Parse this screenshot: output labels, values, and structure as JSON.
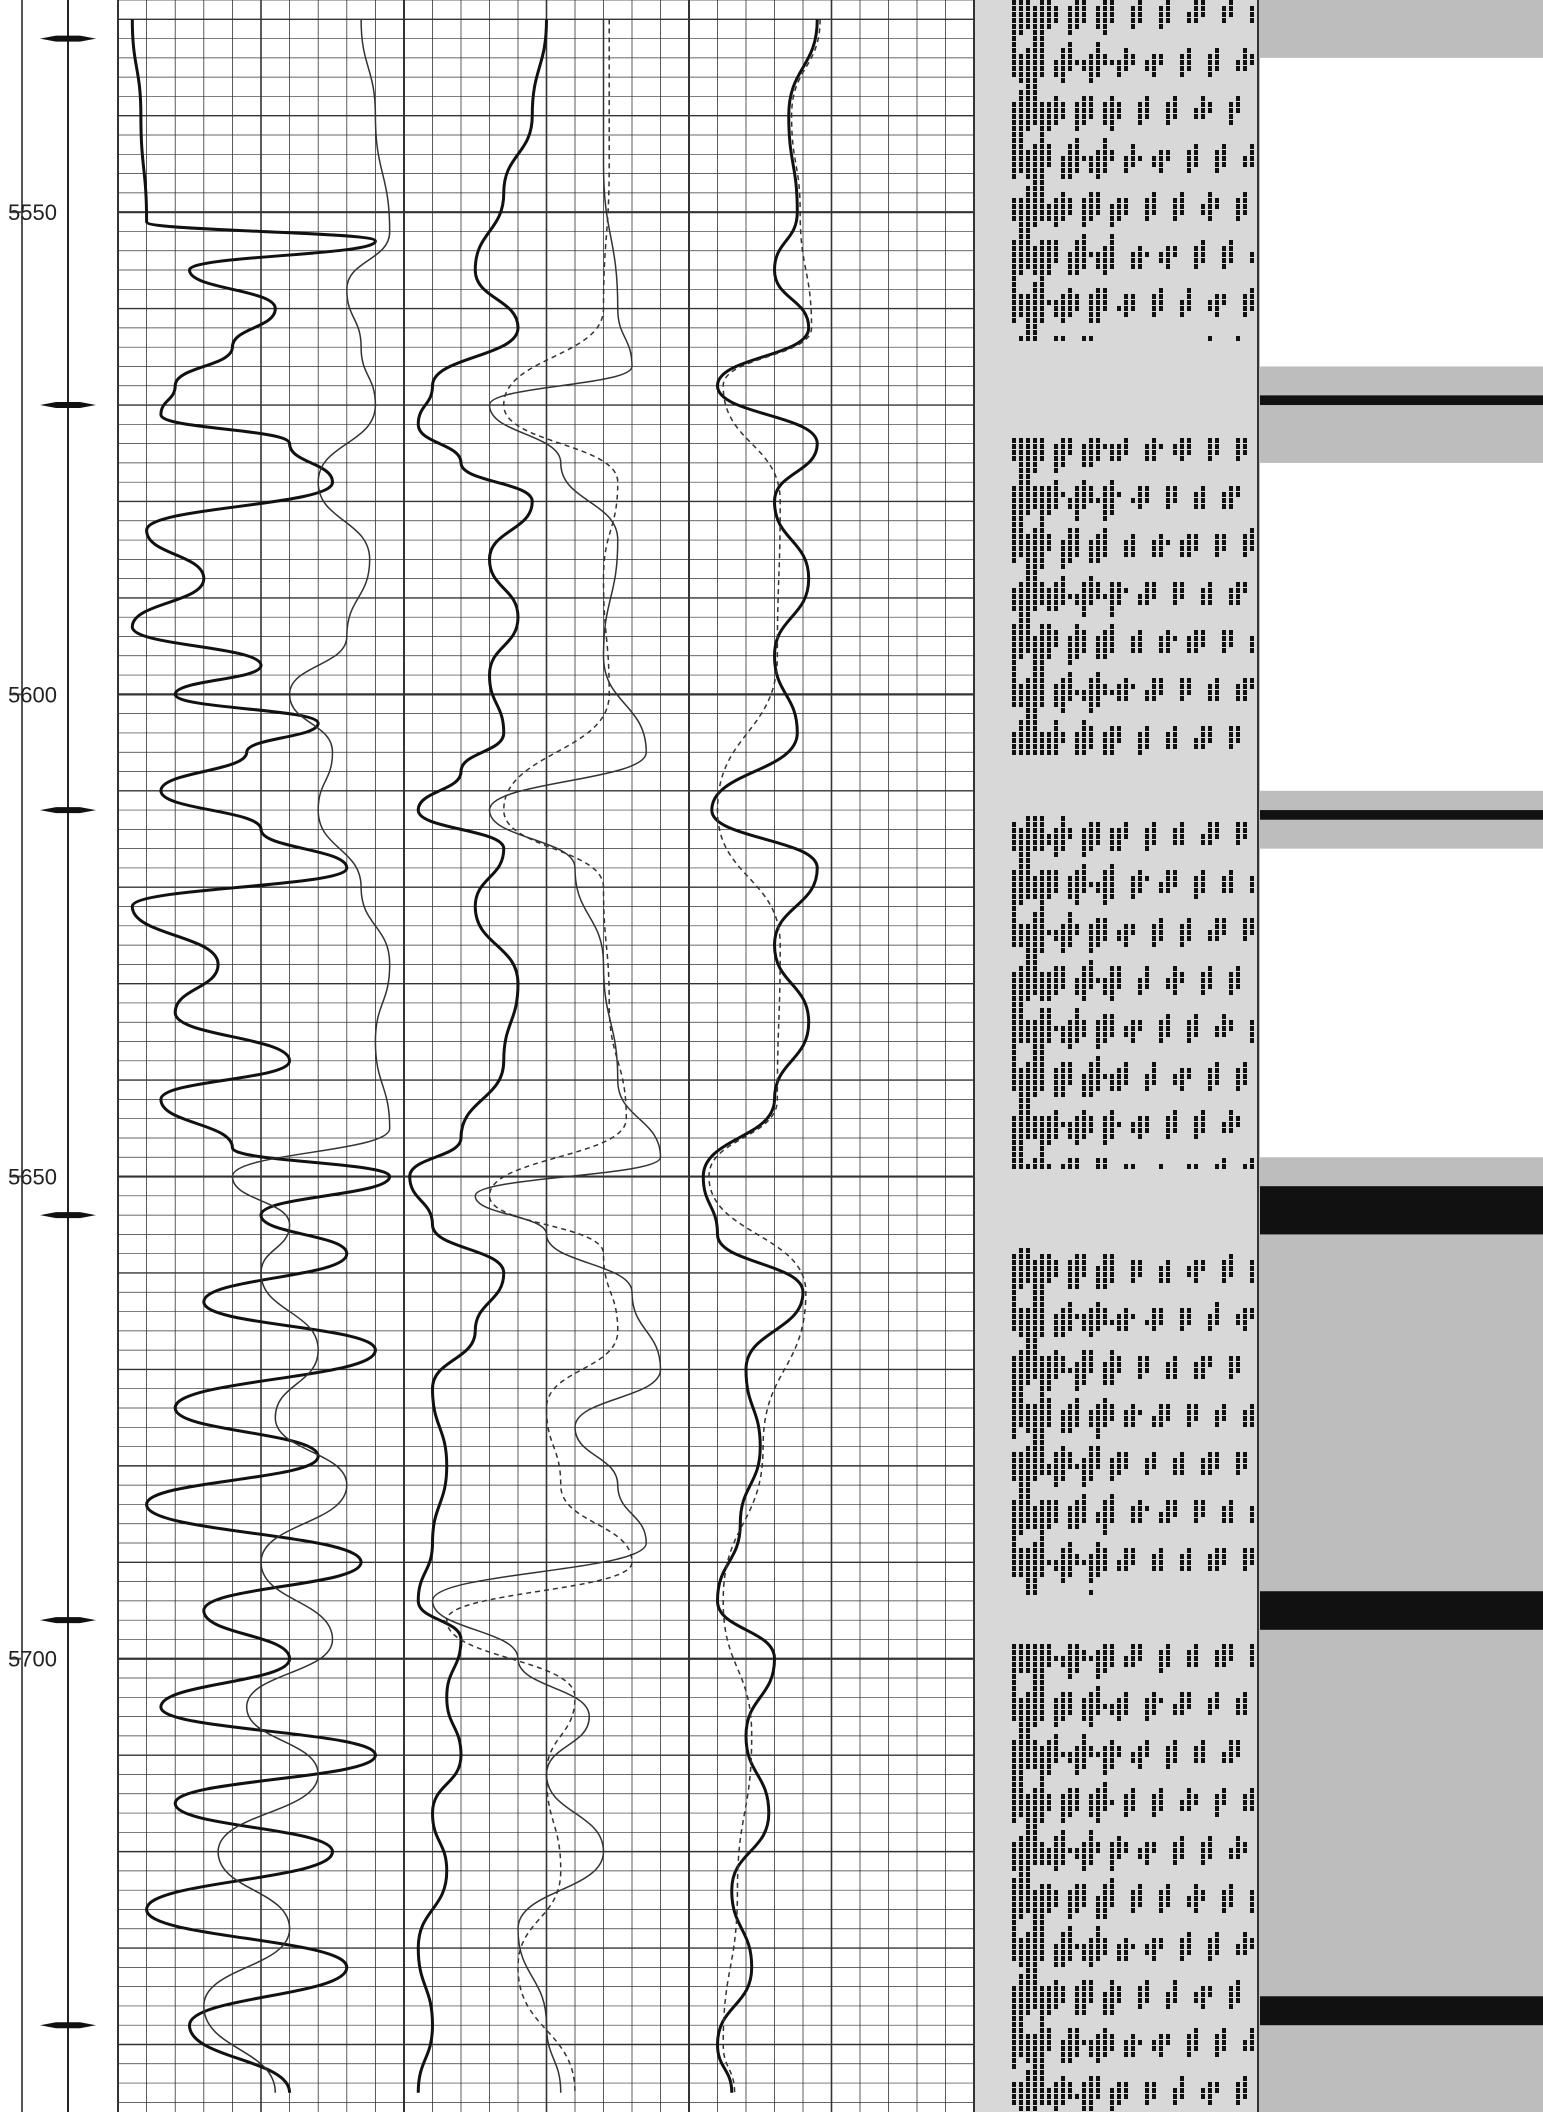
{
  "chart_data": {
    "type": "line",
    "title": "",
    "xlabel": "",
    "ylabel": "",
    "depth_axis": {
      "ylim": [
        5528,
        5747
      ],
      "direction": "downward",
      "tick_labels": [
        "5550",
        "5600",
        "5650",
        "5700"
      ],
      "tick_values": [
        5550,
        5600,
        5650,
        5700
      ],
      "marker_depths": [
        5532,
        5570,
        5612,
        5654,
        5696,
        5738
      ]
    },
    "tracks": [
      {
        "name": "track-1",
        "grid": true,
        "series": [
          {
            "style": "thick",
            "color": "#111111",
            "points": [
              [
                5530,
                0.05
              ],
              [
                5540,
                0.08
              ],
              [
                5551,
                0.1
              ],
              [
                5553,
                0.9
              ],
              [
                5556,
                0.25
              ],
              [
                5560,
                0.55
              ],
              [
                5564,
                0.4
              ],
              [
                5568,
                0.2
              ],
              [
                5571,
                0.15
              ],
              [
                5574,
                0.6
              ],
              [
                5578,
                0.75
              ],
              [
                5583,
                0.1
              ],
              [
                5588,
                0.3
              ],
              [
                5593,
                0.05
              ],
              [
                5597,
                0.5
              ],
              [
                5600,
                0.2
              ],
              [
                5603,
                0.7
              ],
              [
                5606,
                0.45
              ],
              [
                5610,
                0.15
              ],
              [
                5614,
                0.5
              ],
              [
                5618,
                0.8
              ],
              [
                5622,
                0.05
              ],
              [
                5628,
                0.35
              ],
              [
                5633,
                0.2
              ],
              [
                5638,
                0.6
              ],
              [
                5642,
                0.15
              ],
              [
                5647,
                0.4
              ],
              [
                5650,
                0.95
              ],
              [
                5654,
                0.5
              ],
              [
                5658,
                0.8
              ],
              [
                5663,
                0.3
              ],
              [
                5668,
                0.9
              ],
              [
                5674,
                0.2
              ],
              [
                5679,
                0.7
              ],
              [
                5684,
                0.1
              ],
              [
                5690,
                0.85
              ],
              [
                5695,
                0.3
              ],
              [
                5700,
                0.6
              ],
              [
                5705,
                0.15
              ],
              [
                5710,
                0.9
              ],
              [
                5715,
                0.2
              ],
              [
                5720,
                0.75
              ],
              [
                5726,
                0.1
              ],
              [
                5732,
                0.8
              ],
              [
                5738,
                0.25
              ],
              [
                5745,
                0.6
              ]
            ]
          },
          {
            "style": "thin",
            "color": "#333333",
            "points": [
              [
                5530,
                0.85
              ],
              [
                5540,
                0.9
              ],
              [
                5552,
                0.95
              ],
              [
                5558,
                0.8
              ],
              [
                5564,
                0.85
              ],
              [
                5570,
                0.9
              ],
              [
                5578,
                0.7
              ],
              [
                5586,
                0.88
              ],
              [
                5594,
                0.8
              ],
              [
                5600,
                0.6
              ],
              [
                5606,
                0.75
              ],
              [
                5612,
                0.7
              ],
              [
                5620,
                0.85
              ],
              [
                5628,
                0.95
              ],
              [
                5636,
                0.9
              ],
              [
                5645,
                0.95
              ],
              [
                5650,
                0.4
              ],
              [
                5655,
                0.6
              ],
              [
                5660,
                0.5
              ],
              [
                5668,
                0.7
              ],
              [
                5675,
                0.55
              ],
              [
                5682,
                0.8
              ],
              [
                5690,
                0.5
              ],
              [
                5698,
                0.75
              ],
              [
                5705,
                0.45
              ],
              [
                5712,
                0.7
              ],
              [
                5720,
                0.35
              ],
              [
                5728,
                0.6
              ],
              [
                5736,
                0.3
              ],
              [
                5745,
                0.55
              ]
            ]
          }
        ]
      },
      {
        "name": "track-2",
        "grid": true,
        "series": [
          {
            "style": "thick",
            "color": "#111111",
            "points": [
              [
                5530,
                0.5
              ],
              [
                5540,
                0.45
              ],
              [
                5548,
                0.35
              ],
              [
                5556,
                0.25
              ],
              [
                5562,
                0.4
              ],
              [
                5568,
                0.1
              ],
              [
                5572,
                0.05
              ],
              [
                5576,
                0.2
              ],
              [
                5580,
                0.45
              ],
              [
                5586,
                0.3
              ],
              [
                5592,
                0.4
              ],
              [
                5598,
                0.3
              ],
              [
                5604,
                0.35
              ],
              [
                5608,
                0.2
              ],
              [
                5612,
                0.05
              ],
              [
                5616,
                0.35
              ],
              [
                5622,
                0.25
              ],
              [
                5630,
                0.4
              ],
              [
                5638,
                0.35
              ],
              [
                5646,
                0.2
              ],
              [
                5650,
                0.02
              ],
              [
                5655,
                0.1
              ],
              [
                5660,
                0.35
              ],
              [
                5666,
                0.25
              ],
              [
                5672,
                0.1
              ],
              [
                5680,
                0.15
              ],
              [
                5688,
                0.1
              ],
              [
                5694,
                0.05
              ],
              [
                5698,
                0.2
              ],
              [
                5704,
                0.15
              ],
              [
                5710,
                0.2
              ],
              [
                5716,
                0.1
              ],
              [
                5722,
                0.15
              ],
              [
                5730,
                0.05
              ],
              [
                5738,
                0.1
              ],
              [
                5745,
                0.05
              ]
            ]
          },
          {
            "style": "thin",
            "color": "#333333",
            "points": [
              [
                5530,
                0.7
              ],
              [
                5545,
                0.7
              ],
              [
                5560,
                0.75
              ],
              [
                5566,
                0.8
              ],
              [
                5570,
                0.3
              ],
              [
                5576,
                0.55
              ],
              [
                5584,
                0.75
              ],
              [
                5596,
                0.7
              ],
              [
                5606,
                0.85
              ],
              [
                5612,
                0.3
              ],
              [
                5618,
                0.6
              ],
              [
                5628,
                0.7
              ],
              [
                5640,
                0.75
              ],
              [
                5648,
                0.9
              ],
              [
                5652,
                0.25
              ],
              [
                5656,
                0.5
              ],
              [
                5662,
                0.8
              ],
              [
                5670,
                0.9
              ],
              [
                5676,
                0.6
              ],
              [
                5682,
                0.75
              ],
              [
                5688,
                0.85
              ],
              [
                5694,
                0.1
              ],
              [
                5700,
                0.4
              ],
              [
                5706,
                0.65
              ],
              [
                5712,
                0.5
              ],
              [
                5720,
                0.7
              ],
              [
                5728,
                0.4
              ],
              [
                5738,
                0.5
              ],
              [
                5745,
                0.55
              ]
            ]
          },
          {
            "style": "dashed",
            "color": "#333333",
            "points": [
              [
                5530,
                0.72
              ],
              [
                5545,
                0.72
              ],
              [
                5560,
                0.7
              ],
              [
                5570,
                0.35
              ],
              [
                5578,
                0.75
              ],
              [
                5588,
                0.7
              ],
              [
                5600,
                0.72
              ],
              [
                5612,
                0.35
              ],
              [
                5620,
                0.7
              ],
              [
                5632,
                0.72
              ],
              [
                5644,
                0.78
              ],
              [
                5652,
                0.3
              ],
              [
                5658,
                0.7
              ],
              [
                5666,
                0.75
              ],
              [
                5674,
                0.5
              ],
              [
                5682,
                0.55
              ],
              [
                5690,
                0.8
              ],
              [
                5696,
                0.15
              ],
              [
                5704,
                0.6
              ],
              [
                5712,
                0.5
              ],
              [
                5722,
                0.55
              ],
              [
                5732,
                0.4
              ],
              [
                5745,
                0.6
              ]
            ]
          }
        ]
      },
      {
        "name": "track-3",
        "grid": true,
        "series": [
          {
            "style": "thick",
            "color": "#111111",
            "points": [
              [
                5530,
                0.45
              ],
              [
                5540,
                0.35
              ],
              [
                5550,
                0.38
              ],
              [
                5556,
                0.3
              ],
              [
                5562,
                0.42
              ],
              [
                5568,
                0.1
              ],
              [
                5574,
                0.45
              ],
              [
                5580,
                0.3
              ],
              [
                5588,
                0.42
              ],
              [
                5596,
                0.3
              ],
              [
                5604,
                0.38
              ],
              [
                5612,
                0.08
              ],
              [
                5618,
                0.45
              ],
              [
                5626,
                0.3
              ],
              [
                5634,
                0.42
              ],
              [
                5642,
                0.3
              ],
              [
                5650,
                0.05
              ],
              [
                5656,
                0.1
              ],
              [
                5662,
                0.4
              ],
              [
                5670,
                0.2
              ],
              [
                5678,
                0.25
              ],
              [
                5686,
                0.18
              ],
              [
                5694,
                0.1
              ],
              [
                5700,
                0.3
              ],
              [
                5708,
                0.2
              ],
              [
                5716,
                0.28
              ],
              [
                5724,
                0.15
              ],
              [
                5732,
                0.22
              ],
              [
                5740,
                0.1
              ],
              [
                5745,
                0.15
              ]
            ]
          },
          {
            "style": "dashed",
            "color": "#333333",
            "points": [
              [
                5530,
                0.46
              ],
              [
                5540,
                0.36
              ],
              [
                5550,
                0.39
              ],
              [
                5562,
                0.43
              ],
              [
                5568,
                0.12
              ],
              [
                5580,
                0.32
              ],
              [
                5596,
                0.31
              ],
              [
                5612,
                0.1
              ],
              [
                5626,
                0.32
              ],
              [
                5642,
                0.31
              ],
              [
                5650,
                0.07
              ],
              [
                5662,
                0.41
              ],
              [
                5678,
                0.26
              ],
              [
                5694,
                0.12
              ],
              [
                5708,
                0.22
              ],
              [
                5724,
                0.17
              ],
              [
                5740,
                0.12
              ],
              [
                5745,
                0.16
              ]
            ]
          }
        ]
      },
      {
        "name": "track-4",
        "type": "heatmap",
        "pattern": "striped-variable-density",
        "dark_bands": [
          [
            5563,
            5573
          ],
          [
            5606,
            5612
          ],
          [
            5649,
            5657
          ],
          [
            5693,
            5698
          ]
        ]
      },
      {
        "name": "track-5",
        "type": "heatmap",
        "pattern": "grayscale-image",
        "black_layers": [
          [
            5569,
            5570
          ],
          [
            5612,
            5613
          ],
          [
            5651,
            5656
          ],
          [
            5693,
            5697
          ],
          [
            5735,
            5738
          ]
        ],
        "white_layers": [
          [
            5534,
            5566
          ],
          [
            5576,
            5610
          ],
          [
            5616,
            5648
          ]
        ],
        "colors": {
          "black": "#111111",
          "gray": "#bdbdbd",
          "white": "#ffffff"
        }
      }
    ]
  }
}
